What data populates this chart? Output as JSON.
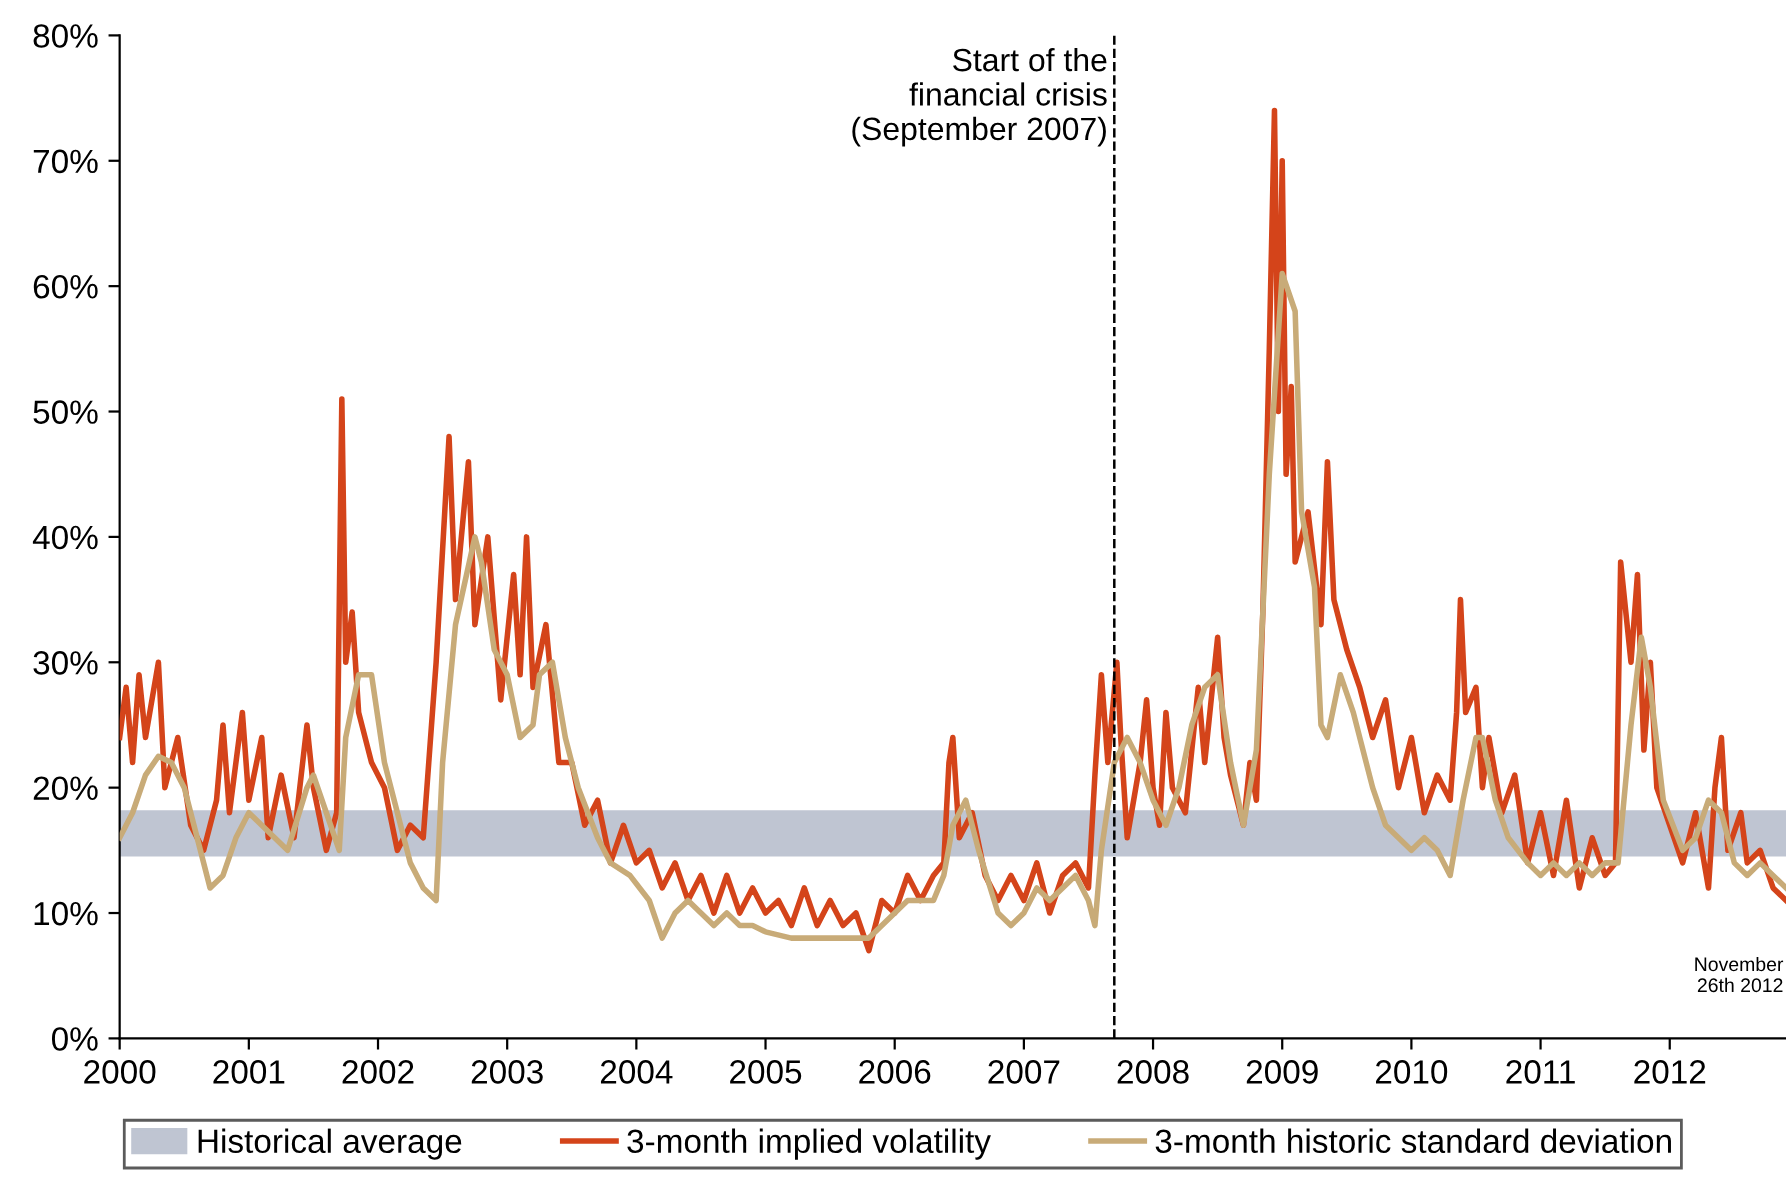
{
  "chart_data": {
    "type": "line",
    "xlim": [
      2000,
      2012.9
    ],
    "xticks": [
      2000,
      2001,
      2002,
      2003,
      2004,
      2005,
      2006,
      2007,
      2008,
      2009,
      2010,
      2011,
      2012
    ],
    "ylim": [
      0,
      80
    ],
    "yticks": [
      {
        "value": 0,
        "label": "0%"
      },
      {
        "value": 10,
        "label": "10%"
      },
      {
        "value": 20,
        "label": "20%"
      },
      {
        "value": 30,
        "label": "30%"
      },
      {
        "value": 40,
        "label": "40%"
      },
      {
        "value": 50,
        "label": "50%"
      },
      {
        "value": 60,
        "label": "60%"
      },
      {
        "value": 70,
        "label": "70%"
      },
      {
        "value": 80,
        "label": "80%"
      }
    ],
    "grid": false,
    "legend": "bottom",
    "bands": [
      {
        "axis": "y",
        "from": 14.5,
        "to": 18.2,
        "label": "Historical average",
        "color": "#bfc5d2"
      }
    ],
    "ref_lines": [
      {
        "axis": "x",
        "value": 2007.7,
        "label": "Start of the\nfinancial crisis\n(September 2007)",
        "line_style": "dashed",
        "color": "#000000"
      }
    ],
    "annotations": [
      {
        "text": "November\n26th 2012",
        "x": 2012.9,
        "y": 11
      }
    ],
    "series": [
      {
        "name": "3-month implied volatility",
        "color": "#d4441a",
        "x": [
          2000.0,
          2000.05,
          2000.1,
          2000.15,
          2000.2,
          2000.3,
          2000.35,
          2000.45,
          2000.55,
          2000.65,
          2000.75,
          2000.8,
          2000.85,
          2000.95,
          2001.0,
          2001.1,
          2001.15,
          2001.25,
          2001.35,
          2001.45,
          2001.5,
          2001.6,
          2001.68,
          2001.72,
          2001.75,
          2001.8,
          2001.85,
          2001.95,
          2002.05,
          2002.15,
          2002.25,
          2002.35,
          2002.45,
          2002.55,
          2002.6,
          2002.7,
          2002.75,
          2002.85,
          2002.95,
          2003.05,
          2003.1,
          2003.15,
          2003.2,
          2003.3,
          2003.4,
          2003.5,
          2003.6,
          2003.7,
          2003.8,
          2003.9,
          2004.0,
          2004.1,
          2004.2,
          2004.3,
          2004.4,
          2004.5,
          2004.6,
          2004.7,
          2004.8,
          2004.9,
          2005.0,
          2005.1,
          2005.2,
          2005.3,
          2005.4,
          2005.5,
          2005.6,
          2005.7,
          2005.8,
          2005.9,
          2006.0,
          2006.1,
          2006.2,
          2006.3,
          2006.38,
          2006.42,
          2006.45,
          2006.5,
          2006.6,
          2006.7,
          2006.8,
          2006.9,
          2007.0,
          2007.1,
          2007.2,
          2007.3,
          2007.4,
          2007.5,
          2007.55,
          2007.6,
          2007.65,
          2007.72,
          2007.75,
          2007.8,
          2007.9,
          2007.95,
          2008.0,
          2008.05,
          2008.1,
          2008.15,
          2008.25,
          2008.35,
          2008.4,
          2008.5,
          2008.55,
          2008.6,
          2008.7,
          2008.75,
          2008.8,
          2008.85,
          2008.9,
          2008.94,
          2008.97,
          2009.0,
          2009.03,
          2009.07,
          2009.1,
          2009.2,
          2009.3,
          2009.35,
          2009.4,
          2009.5,
          2009.6,
          2009.7,
          2009.8,
          2009.9,
          2010.0,
          2010.1,
          2010.2,
          2010.3,
          2010.35,
          2010.38,
          2010.42,
          2010.5,
          2010.55,
          2010.6,
          2010.7,
          2010.8,
          2010.9,
          2011.0,
          2011.1,
          2011.2,
          2011.3,
          2011.4,
          2011.5,
          2011.58,
          2011.62,
          2011.7,
          2011.75,
          2011.8,
          2011.85,
          2011.9,
          2012.0,
          2012.1,
          2012.2,
          2012.3,
          2012.35,
          2012.4,
          2012.45,
          2012.55,
          2012.6,
          2012.7,
          2012.8,
          2012.9
        ],
        "values": [
          24,
          28,
          22,
          29,
          24,
          30,
          20,
          24,
          17,
          15,
          19,
          25,
          18,
          26,
          19,
          24,
          16,
          21,
          16,
          25,
          20,
          15,
          18,
          51,
          30,
          34,
          26,
          22,
          20,
          15,
          17,
          16,
          30,
          48,
          35,
          46,
          33,
          40,
          27,
          37,
          29,
          40,
          28,
          33,
          22,
          22,
          17,
          19,
          14,
          17,
          14,
          15,
          12,
          14,
          11,
          13,
          10,
          13,
          10,
          12,
          10,
          11,
          9,
          12,
          9,
          11,
          9,
          10,
          7,
          11,
          10,
          13,
          11,
          13,
          14,
          22,
          24,
          16,
          18,
          13,
          11,
          13,
          11,
          14,
          10,
          13,
          14,
          12,
          21,
          29,
          22,
          30,
          24,
          16,
          22,
          27,
          20,
          17,
          26,
          20,
          18,
          28,
          22,
          32,
          24,
          21,
          17,
          22,
          19,
          34,
          55,
          74,
          50,
          70,
          45,
          52,
          38,
          42,
          33,
          46,
          35,
          31,
          28,
          24,
          27,
          20,
          24,
          18,
          21,
          19,
          26,
          35,
          26,
          28,
          20,
          24,
          18,
          21,
          14,
          18,
          13,
          19,
          12,
          16,
          13,
          14,
          38,
          30,
          37,
          23,
          30,
          20,
          17,
          14,
          18,
          12,
          20,
          24,
          15,
          18,
          14,
          15,
          12,
          11
        ]
      },
      {
        "name": "3-month historic standard deviation",
        "color": "#c8ab78",
        "x": [
          2000.0,
          2000.1,
          2000.2,
          2000.3,
          2000.4,
          2000.5,
          2000.6,
          2000.7,
          2000.8,
          2000.9,
          2001.0,
          2001.1,
          2001.2,
          2001.3,
          2001.45,
          2001.5,
          2001.6,
          2001.7,
          2001.75,
          2001.85,
          2001.95,
          2002.05,
          2002.15,
          2002.25,
          2002.35,
          2002.45,
          2002.5,
          2002.6,
          2002.75,
          2002.8,
          2002.9,
          2003.0,
          2003.1,
          2003.2,
          2003.25,
          2003.35,
          2003.45,
          2003.55,
          2003.7,
          2003.8,
          2003.95,
          2004.1,
          2004.2,
          2004.3,
          2004.4,
          2004.5,
          2004.6,
          2004.7,
          2004.8,
          2004.9,
          2005.0,
          2005.2,
          2005.4,
          2005.6,
          2005.8,
          2005.9,
          2006.0,
          2006.1,
          2006.2,
          2006.3,
          2006.38,
          2006.45,
          2006.55,
          2006.65,
          2006.8,
          2006.9,
          2007.0,
          2007.1,
          2007.2,
          2007.3,
          2007.4,
          2007.5,
          2007.55,
          2007.6,
          2007.7,
          2007.8,
          2007.9,
          2008.0,
          2008.1,
          2008.2,
          2008.3,
          2008.4,
          2008.5,
          2008.6,
          2008.7,
          2008.75,
          2008.8,
          2008.9,
          2009.0,
          2009.1,
          2009.15,
          2009.25,
          2009.3,
          2009.35,
          2009.45,
          2009.55,
          2009.7,
          2009.8,
          2009.9,
          2010.0,
          2010.1,
          2010.2,
          2010.3,
          2010.4,
          2010.5,
          2010.55,
          2010.65,
          2010.75,
          2010.9,
          2011.0,
          2011.1,
          2011.2,
          2011.3,
          2011.4,
          2011.5,
          2011.6,
          2011.7,
          2011.78,
          2011.85,
          2011.95,
          2012.1,
          2012.2,
          2012.3,
          2012.4,
          2012.5,
          2012.6,
          2012.7,
          2012.8,
          2012.9
        ],
        "values": [
          16,
          18,
          21,
          22.5,
          22,
          20,
          16,
          12,
          13,
          16,
          18,
          17,
          16,
          15,
          20,
          21,
          18,
          15,
          24,
          29,
          29,
          22,
          18,
          14,
          12,
          11,
          22,
          33,
          40,
          38,
          31,
          29,
          24,
          25,
          29,
          30,
          24,
          20,
          16,
          14,
          13,
          11,
          8,
          10,
          11,
          10,
          9,
          10,
          9,
          9,
          8.5,
          8,
          8,
          8,
          8,
          9,
          10,
          11,
          11,
          11,
          13,
          17,
          19,
          15,
          10,
          9,
          10,
          12,
          11,
          12,
          13,
          11,
          9,
          15,
          22,
          24,
          22,
          19,
          17,
          20,
          25,
          28,
          29,
          22,
          17,
          20,
          23,
          45,
          61,
          58,
          42,
          36,
          25,
          24,
          29,
          26,
          20,
          17,
          16,
          15,
          16,
          15,
          13,
          19,
          24,
          24,
          19,
          16,
          14,
          13,
          14,
          13,
          14,
          13,
          14,
          14,
          25,
          32,
          28,
          19,
          15,
          16,
          19,
          18,
          14,
          13,
          14,
          13,
          12
        ]
      }
    ]
  }
}
